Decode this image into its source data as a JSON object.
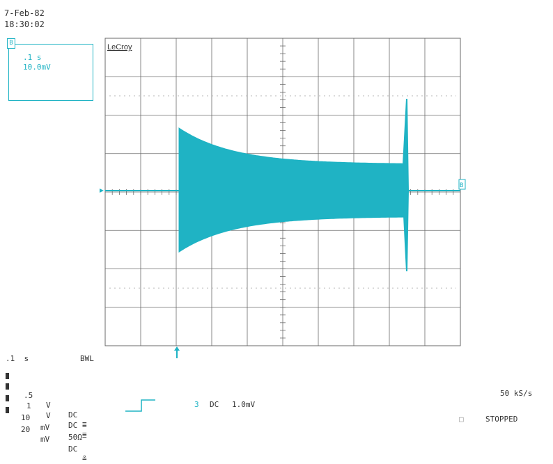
{
  "header": {
    "date": "7-Feb-82",
    "time": "18:30:02"
  },
  "channel_box": {
    "channel": "B",
    "time_per_div": ".1 s",
    "volts_per_div": "10.0mV"
  },
  "graticule": {
    "brand": "LeCroy",
    "trace_color": "#1fb3c4",
    "grid_color": "#6a6a6a",
    "trace_label": "B"
  },
  "bottom_left": {
    "timebase": ".1  s",
    "bwl": "BWL",
    "channels": [
      {
        "value": ".5",
        "unit": "V",
        "coupling": "DC",
        "suffix": "≣"
      },
      {
        "value": "1",
        "unit": "V",
        "coupling": "DC",
        "suffix": "≣"
      },
      {
        "value": "10",
        "unit": "mV",
        "coupling": "50Ω",
        "suffix": ""
      },
      {
        "value": "20",
        "unit": "mV",
        "coupling": "DC",
        "suffix": "≗"
      }
    ]
  },
  "trigger": {
    "channel": "3",
    "coupling": "DC",
    "level": "1.0mV"
  },
  "sample_rate": "50 kS/s",
  "status": "STOPPED",
  "icons": [
    "channel-b-icon",
    "ground-marker-icon",
    "trigger-marker-icon",
    "trigger-edge-icon",
    "stop-indicator-icon"
  ]
}
